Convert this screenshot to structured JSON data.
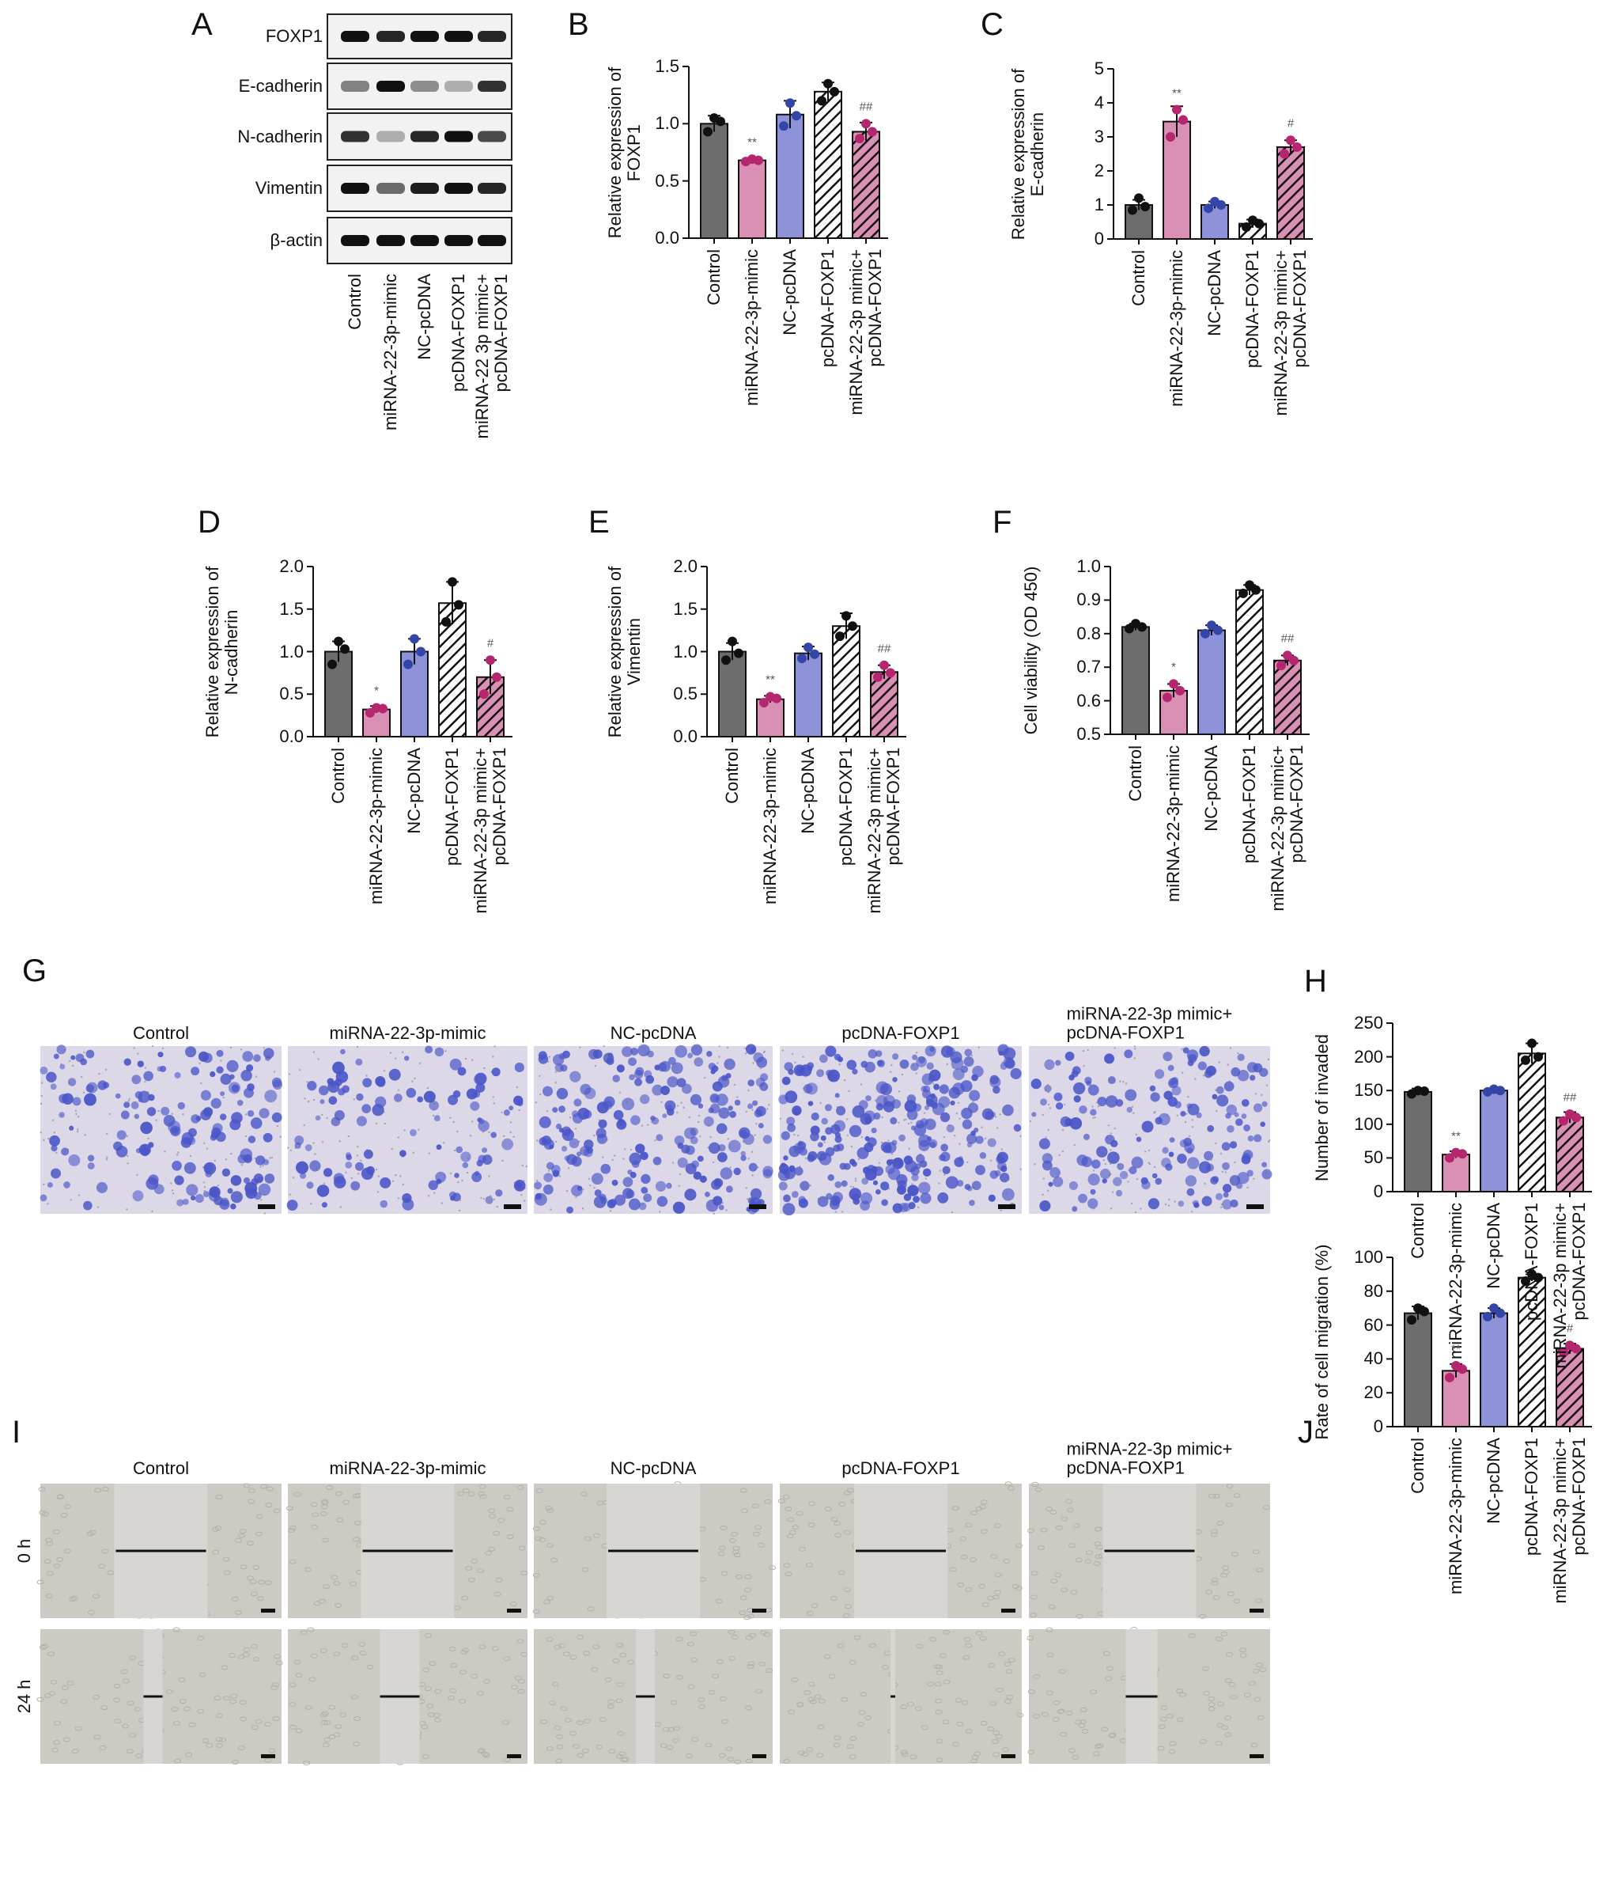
{
  "panel_letters": [
    "A",
    "B",
    "C",
    "D",
    "E",
    "F",
    "G",
    "H",
    "I",
    "J"
  ],
  "blot": {
    "proteins": [
      "FOXP1",
      "E-cadherin",
      "N-cadherin",
      "Vimentin",
      "β-actin"
    ],
    "lanes": [
      "Control",
      "miRNA-22-3p-mimic",
      "NC-pcDNA",
      "pcDNA-FOXP1",
      "miRNA-22 3p mimic+\npcDNA-FOXP1"
    ]
  },
  "invasion": {
    "labels": [
      "Control",
      "miRNA-22-3p-mimic",
      "NC-pcDNA",
      "pcDNA-FOXP1",
      "miRNA-22-3p mimic+\npcDNA-FOXP1"
    ]
  },
  "migration": {
    "labels": [
      "Control",
      "miRNA-22-3p-mimic",
      "NC-pcDNA",
      "pcDNA-FOXP1",
      "miRNA-22-3p mimic+\npcDNA-FOXP1"
    ],
    "times": [
      "0 h",
      "24 h"
    ]
  },
  "chart_data": [
    {
      "type": "bar",
      "ylabel": "Relative expression of\nFOXP1",
      "categories": [
        "Control",
        "miRNA-22-3p-mimic",
        "NC-pcDNA",
        "pcDNA-FOXP1",
        "miRNA-22-3p mimic+\npcDNA-FOXP1"
      ],
      "values": [
        1.0,
        0.68,
        1.08,
        1.28,
        0.93
      ],
      "errors": [
        0.07,
        0.02,
        0.12,
        0.08,
        0.08
      ],
      "points": [
        [
          0.93,
          1.05,
          1.02
        ],
        [
          0.67,
          0.69,
          0.68
        ],
        [
          0.98,
          1.18,
          1.07
        ],
        [
          1.2,
          1.35,
          1.28
        ],
        [
          0.87,
          1.0,
          0.93
        ]
      ],
      "annotations": [
        null,
        "**",
        null,
        null,
        "##"
      ],
      "colors": [
        "#6d6d6d",
        "#d990b4",
        "#8e92d8",
        "#ffffff",
        "#d990b4"
      ],
      "point_colors": [
        "#111111",
        "#b5266e",
        "#3445a8",
        "#111111",
        "#b5266e"
      ],
      "hatch": [
        false,
        false,
        false,
        true,
        true
      ],
      "ylim": [
        0,
        1.5
      ],
      "yticks": [
        {
          "value": 0,
          "label": "0.0"
        },
        0.5,
        {
          "value": 1,
          "label": "1.0"
        },
        1.5
      ]
    },
    {
      "type": "bar",
      "ylabel": "Relative expression of\nE-cadherin",
      "categories": [
        "Control",
        "miRNA-22-3p-mimic",
        "NC-pcDNA",
        "pcDNA-FOXP1",
        "miRNA-22-3p mimic+\npcDNA-FOXP1"
      ],
      "values": [
        1.0,
        3.45,
        1.0,
        0.45,
        2.7
      ],
      "errors": [
        0.15,
        0.45,
        0.1,
        0.12,
        0.2
      ],
      "points": [
        [
          0.85,
          1.2,
          0.95
        ],
        [
          3.0,
          3.8,
          3.5
        ],
        [
          0.9,
          1.1,
          1.0
        ],
        [
          0.35,
          0.55,
          0.45
        ],
        [
          2.5,
          2.9,
          2.7
        ]
      ],
      "annotations": [
        null,
        "**",
        null,
        null,
        "#"
      ],
      "colors": [
        "#6d6d6d",
        "#d990b4",
        "#8e92d8",
        "#ffffff",
        "#d990b4"
      ],
      "point_colors": [
        "#111111",
        "#b5266e",
        "#3445a8",
        "#111111",
        "#b5266e"
      ],
      "hatch": [
        false,
        false,
        false,
        true,
        true
      ],
      "ylim": [
        0,
        5
      ],
      "yticks": [
        0,
        1,
        2,
        3,
        4,
        5
      ]
    },
    {
      "type": "bar",
      "ylabel": "Relative expression of\nN-cadherin",
      "categories": [
        "Control",
        "miRNA-22-3p-mimic",
        "NC-pcDNA",
        "pcDNA-FOXP1",
        "miRNA-22-3p mimic+\npcDNA-FOXP1"
      ],
      "values": [
        1.0,
        0.32,
        1.0,
        1.57,
        0.7
      ],
      "errors": [
        0.12,
        0.04,
        0.15,
        0.25,
        0.2
      ],
      "points": [
        [
          0.85,
          1.12,
          1.03
        ],
        [
          0.28,
          0.34,
          0.33
        ],
        [
          0.85,
          1.15,
          1.0
        ],
        [
          1.35,
          1.82,
          1.55
        ],
        [
          0.5,
          0.9,
          0.7
        ]
      ],
      "annotations": [
        null,
        "*",
        null,
        null,
        "#"
      ],
      "colors": [
        "#6d6d6d",
        "#d990b4",
        "#8e92d8",
        "#ffffff",
        "#d990b4"
      ],
      "point_colors": [
        "#111111",
        "#b5266e",
        "#3445a8",
        "#111111",
        "#b5266e"
      ],
      "hatch": [
        false,
        false,
        false,
        true,
        true
      ],
      "ylim": [
        0,
        2
      ],
      "yticks": [
        {
          "value": 0,
          "label": "0.0"
        },
        0.5,
        {
          "value": 1,
          "label": "1.0"
        },
        1.5,
        {
          "value": 2,
          "label": "2.0"
        }
      ]
    },
    {
      "type": "bar",
      "ylabel": "Relative expression of\nVimentin",
      "categories": [
        "Control",
        "miRNA-22-3p-mimic",
        "NC-pcDNA",
        "pcDNA-FOXP1",
        "miRNA-22-3p mimic+\npcDNA-FOXP1"
      ],
      "values": [
        1.0,
        0.44,
        0.98,
        1.3,
        0.76
      ],
      "errors": [
        0.1,
        0.04,
        0.08,
        0.15,
        0.08
      ],
      "points": [
        [
          0.9,
          1.12,
          0.98
        ],
        [
          0.4,
          0.47,
          0.45
        ],
        [
          0.92,
          1.05,
          0.97
        ],
        [
          1.18,
          1.42,
          1.3
        ],
        [
          0.7,
          0.84,
          0.75
        ]
      ],
      "annotations": [
        null,
        "**",
        null,
        null,
        "##"
      ],
      "colors": [
        "#6d6d6d",
        "#d990b4",
        "#8e92d8",
        "#ffffff",
        "#d990b4"
      ],
      "point_colors": [
        "#111111",
        "#b5266e",
        "#3445a8",
        "#111111",
        "#b5266e"
      ],
      "hatch": [
        false,
        false,
        false,
        true,
        true
      ],
      "ylim": [
        0,
        2
      ],
      "yticks": [
        {
          "value": 0,
          "label": "0.0"
        },
        0.5,
        {
          "value": 1,
          "label": "1.0"
        },
        1.5,
        {
          "value": 2,
          "label": "2.0"
        }
      ]
    },
    {
      "type": "bar",
      "ylabel": "Cell viability (OD 450)",
      "categories": [
        "Control",
        "miRNA-22-3p-mimic",
        "NC-pcDNA",
        "pcDNA-FOXP1",
        "miRNA-22-3p mimic+\npcDNA-FOXP1"
      ],
      "values": [
        0.82,
        0.63,
        0.81,
        0.93,
        0.72
      ],
      "errors": [
        0.01,
        0.02,
        0.015,
        0.015,
        0.015
      ],
      "points": [
        [
          0.815,
          0.83,
          0.82
        ],
        [
          0.61,
          0.65,
          0.63
        ],
        [
          0.8,
          0.825,
          0.81
        ],
        [
          0.92,
          0.945,
          0.93
        ],
        [
          0.705,
          0.735,
          0.72
        ]
      ],
      "annotations": [
        null,
        "*",
        null,
        null,
        "##"
      ],
      "colors": [
        "#6d6d6d",
        "#d990b4",
        "#8e92d8",
        "#ffffff",
        "#d990b4"
      ],
      "point_colors": [
        "#111111",
        "#b5266e",
        "#3445a8",
        "#111111",
        "#b5266e"
      ],
      "hatch": [
        false,
        false,
        false,
        true,
        true
      ],
      "ylim": [
        0.5,
        1
      ],
      "yticks": [
        0.5,
        0.6,
        0.7,
        0.8,
        0.9,
        {
          "value": 1,
          "label": "1.0"
        }
      ]
    },
    {
      "type": "bar",
      "ylabel": "Number of invaded",
      "categories": [
        "Control",
        "miRNA-22-3p-mimic",
        "NC-pcDNA",
        "pcDNA-FOXP1",
        "miRNA-22-3p mimic+\npcDNA-FOXP1"
      ],
      "values": [
        148,
        55,
        150,
        205,
        110
      ],
      "errors": [
        5,
        5,
        3,
        15,
        8
      ],
      "points": [
        [
          145,
          150,
          149
        ],
        [
          50,
          58,
          56
        ],
        [
          148,
          152,
          150
        ],
        [
          195,
          220,
          200
        ],
        [
          105,
          115,
          110
        ]
      ],
      "annotations": [
        null,
        "**",
        null,
        null,
        "##"
      ],
      "colors": [
        "#6d6d6d",
        "#d990b4",
        "#8e92d8",
        "#ffffff",
        "#d990b4"
      ],
      "point_colors": [
        "#111111",
        "#b5266e",
        "#3445a8",
        "#111111",
        "#b5266e"
      ],
      "hatch": [
        false,
        false,
        false,
        true,
        true
      ],
      "ylim": [
        0,
        250
      ],
      "yticks": [
        0,
        50,
        100,
        150,
        200,
        250
      ]
    },
    {
      "type": "bar",
      "ylabel": "Rate of cell migration (%)",
      "categories": [
        "Control",
        "miRNA-22-3p-mimic",
        "NC-pcDNA",
        "pcDNA-FOXP1",
        "miRNA-22-3p mimic+\npcDNA-FOXP1"
      ],
      "values": [
        67,
        33,
        67,
        88,
        46
      ],
      "errors": [
        4,
        4,
        3,
        2,
        3
      ],
      "points": [
        [
          63,
          70,
          68
        ],
        [
          29,
          36,
          34
        ],
        [
          65,
          70,
          67
        ],
        [
          86,
          90,
          88
        ],
        [
          44,
          48,
          46
        ]
      ],
      "annotations": [
        null,
        "**",
        null,
        null,
        "#"
      ],
      "colors": [
        "#6d6d6d",
        "#d990b4",
        "#8e92d8",
        "#ffffff",
        "#d990b4"
      ],
      "point_colors": [
        "#111111",
        "#b5266e",
        "#3445a8",
        "#111111",
        "#b5266e"
      ],
      "hatch": [
        false,
        false,
        false,
        true,
        true
      ],
      "ylim": [
        0,
        100
      ],
      "yticks": [
        0,
        20,
        40,
        60,
        80,
        100
      ]
    }
  ]
}
